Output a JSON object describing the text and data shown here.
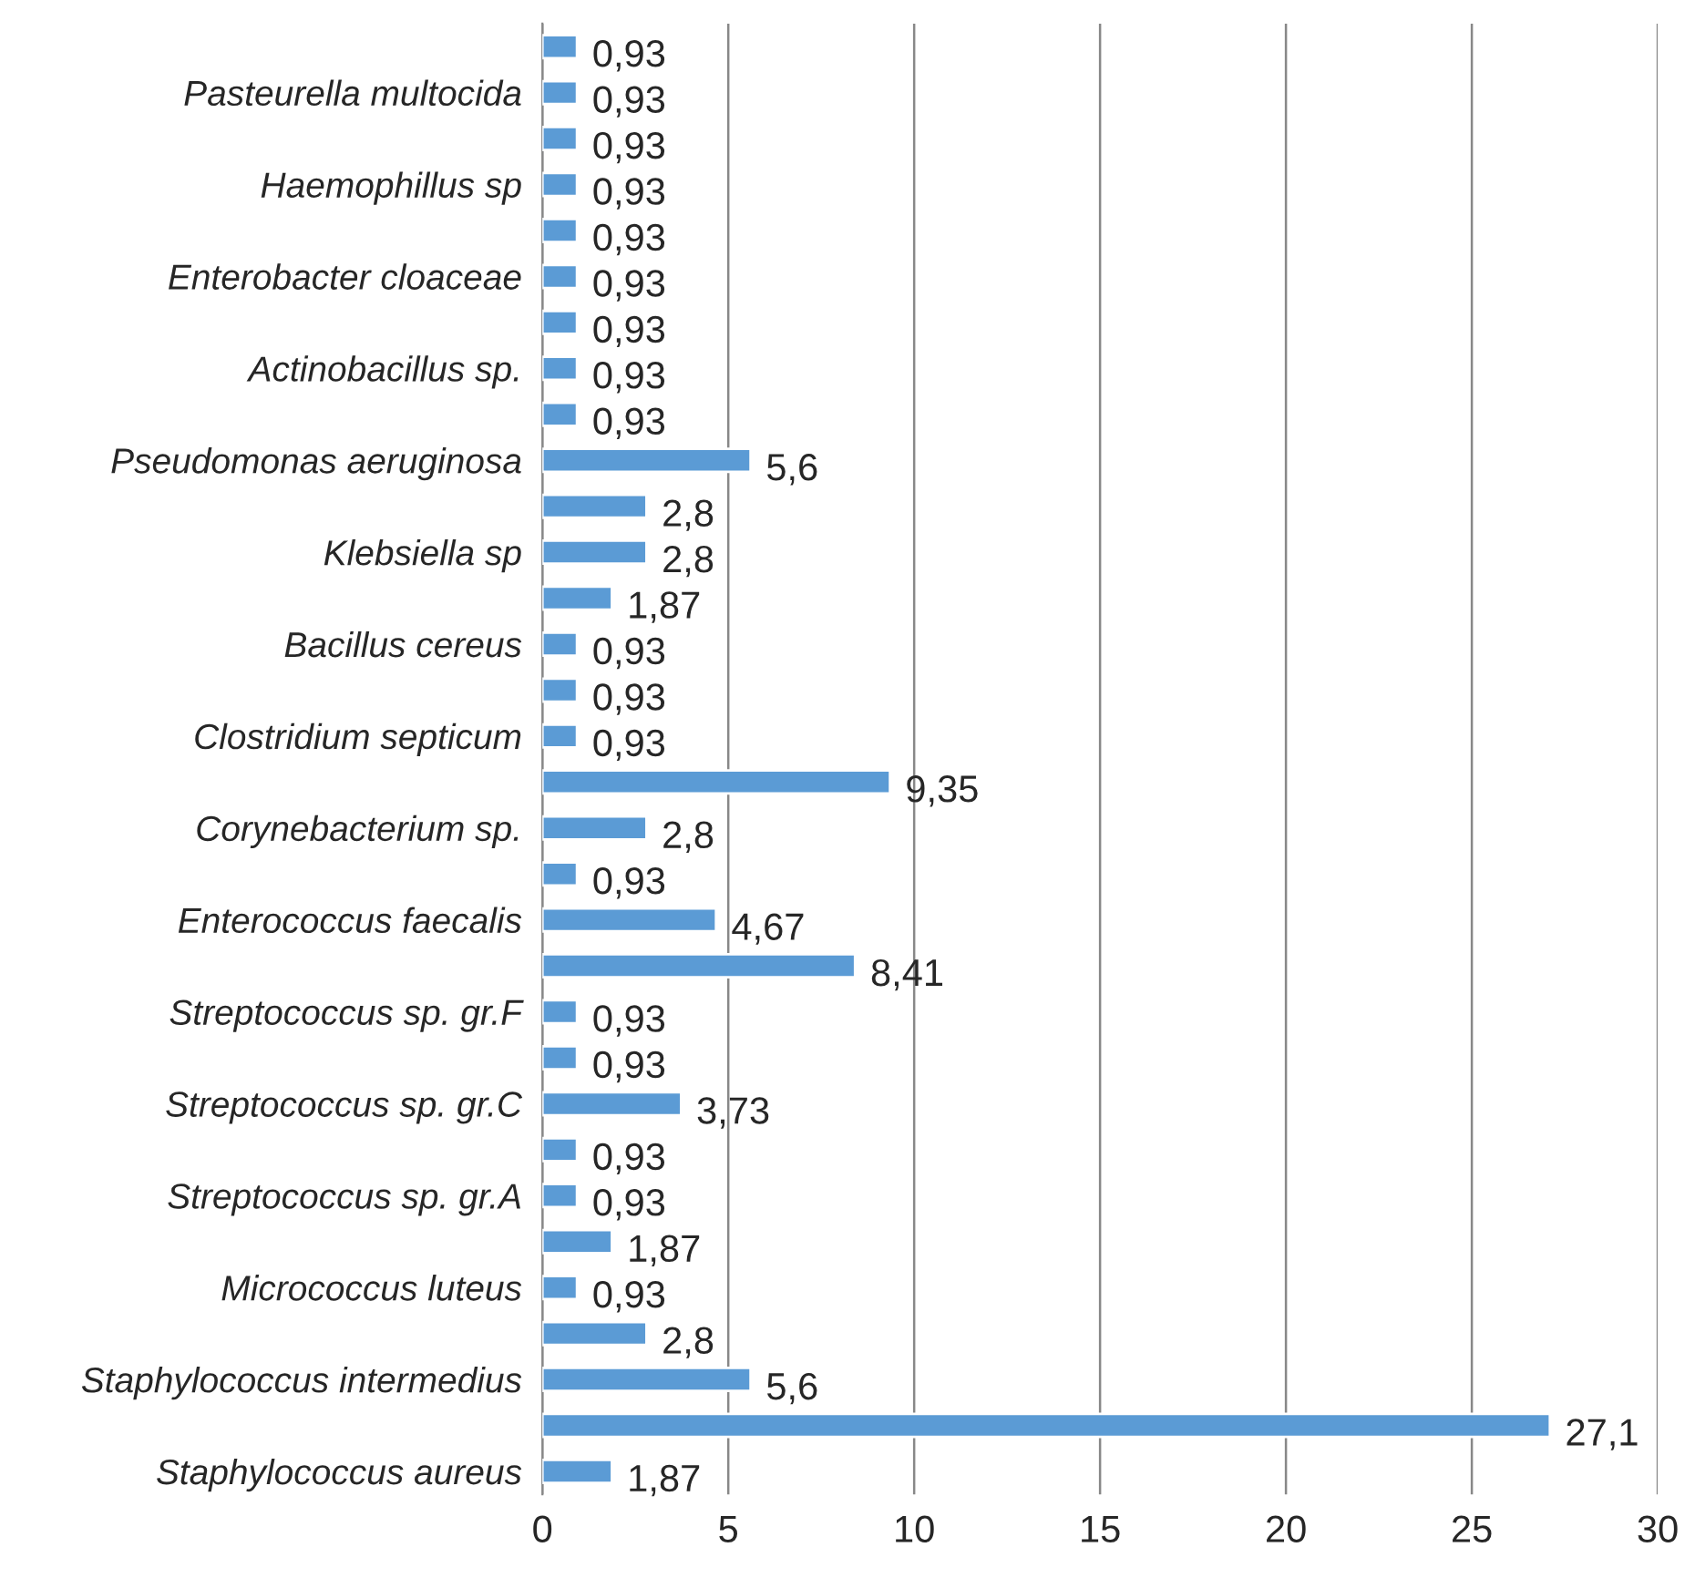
{
  "chart_data": {
    "type": "bar",
    "orientation": "horizontal",
    "categories": [
      null,
      "Pasteurella multocida",
      null,
      "Haemophillus sp",
      null,
      "Enterobacter cloaceae",
      null,
      "Actinobacillus sp.",
      null,
      "Pseudomonas aeruginosa",
      null,
      "Klebsiella sp",
      null,
      "Bacillus cereus",
      null,
      "Clostridium septicum",
      null,
      "Corynebacterium sp.",
      null,
      "Enterococcus faecalis",
      null,
      "Streptococcus sp. gr.F",
      null,
      "Streptococcus sp. gr.C",
      null,
      "Streptococcus sp. gr.A",
      null,
      "Micrococcus luteus",
      null,
      "Staphylococcus intermedius",
      null,
      "Staphylococcus aureus"
    ],
    "values": [
      0.93,
      0.93,
      0.93,
      0.93,
      0.93,
      0.93,
      0.93,
      0.93,
      0.93,
      5.6,
      2.8,
      2.8,
      1.87,
      0.93,
      0.93,
      0.93,
      9.35,
      2.8,
      0.93,
      4.67,
      8.41,
      0.93,
      0.93,
      3.73,
      0.93,
      0.93,
      1.87,
      0.93,
      2.8,
      5.6,
      27.1,
      1.87
    ],
    "value_labels": [
      "0,93",
      "0,93",
      "0,93",
      "0,93",
      "0,93",
      "0,93",
      "0,93",
      "0,93",
      "0,93",
      "5,6",
      "2,8",
      "2,8",
      "1,87",
      "0,93",
      "0,93",
      "0,93",
      "9,35",
      "2,8",
      "0,93",
      "4,67",
      "8,41",
      "0,93",
      "0,93",
      "3,73",
      "0,93",
      "0,93",
      "1,87",
      "0,93",
      "2,8",
      "5,6",
      "27,1",
      "1,87"
    ],
    "color": "#5b9bd5",
    "xlim": [
      0,
      30
    ],
    "xticks": [
      0,
      5,
      10,
      15,
      20,
      25,
      30
    ],
    "grid": "x",
    "legend": false
  }
}
